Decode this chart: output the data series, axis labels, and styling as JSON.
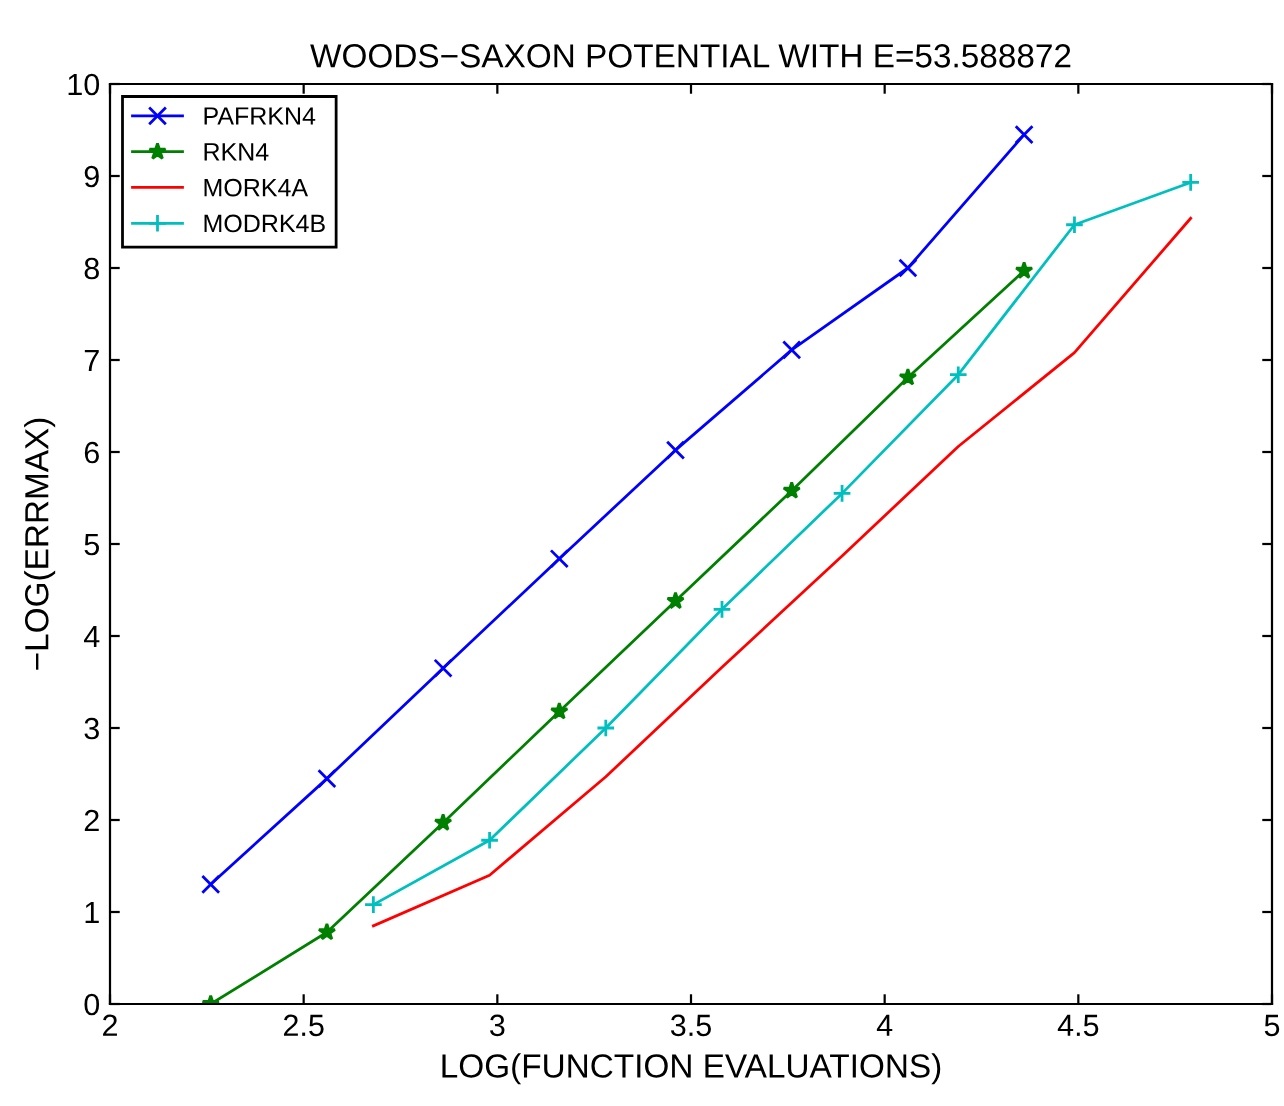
{
  "chart_data": {
    "type": "line",
    "title": "WOODS−SAXON POTENTIAL WITH E=53.588872",
    "xlabel": "LOG(FUNCTION EVALUATIONS)",
    "ylabel": "−LOG(ERRMAX)",
    "xlim": [
      2,
      5
    ],
    "xticks": [
      2,
      2.5,
      3,
      3.5,
      4,
      4.5,
      5
    ],
    "ylim": [
      0,
      10
    ],
    "yticks": [
      0,
      1,
      2,
      3,
      4,
      5,
      6,
      7,
      8,
      9,
      10
    ],
    "grid": false,
    "legend": "top left",
    "series": [
      {
        "name": "PAFRKN4",
        "color": "#0000ff",
        "marker": "cross",
        "x": [
          2.26,
          2.56,
          2.86,
          3.16,
          3.46,
          3.76,
          4.06,
          4.36
        ],
        "values": [
          1.3,
          2.45,
          3.65,
          4.84,
          6.02,
          7.11,
          8.0,
          9.45
        ]
      },
      {
        "name": "RKN4",
        "color": "#008000",
        "marker": "star",
        "x": [
          2.26,
          2.56,
          2.86,
          3.16,
          3.46,
          3.76,
          4.06,
          4.36
        ],
        "values": [
          0.0,
          0.78,
          1.97,
          3.18,
          4.38,
          5.58,
          6.81,
          7.97
        ]
      },
      {
        "name": "MORK4A",
        "color": "#ff0000",
        "marker": "none",
        "x": [
          2.68,
          2.98,
          3.28,
          3.58,
          3.89,
          4.19,
          4.49,
          4.79
        ],
        "values": [
          0.85,
          1.4,
          2.47,
          3.66,
          4.87,
          6.06,
          7.08,
          8.54
        ]
      },
      {
        "name": "MODRK4B",
        "color": "#00bfbf",
        "marker": "plus",
        "x": [
          2.68,
          2.98,
          3.28,
          3.58,
          3.89,
          4.19,
          4.49,
          4.79
        ],
        "values": [
          1.08,
          1.78,
          3.0,
          4.29,
          5.55,
          6.84,
          8.47,
          8.93
        ]
      }
    ]
  }
}
